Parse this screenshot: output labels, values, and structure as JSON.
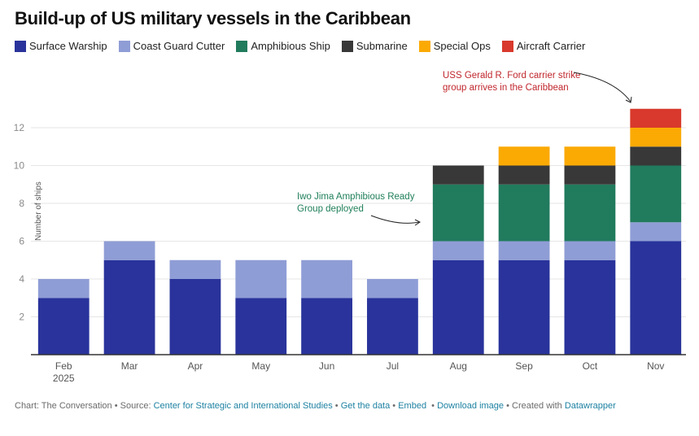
{
  "chart_data": {
    "type": "bar",
    "stacked": true,
    "title": "Build-up of US military vessels in the Caribbean",
    "xlabel": "",
    "ylabel": "Number of ships",
    "ylim": [
      0,
      12
    ],
    "yticks": [
      2,
      4,
      6,
      8,
      10,
      12
    ],
    "grid": true,
    "legend_position": "top-left",
    "categories": [
      "Feb",
      "Mar",
      "Apr",
      "May",
      "Jun",
      "Jul",
      "Aug",
      "Sep",
      "Oct",
      "Nov"
    ],
    "category_sublabels": [
      "2025",
      "",
      "",
      "",
      "",
      "",
      "",
      "",
      "",
      ""
    ],
    "series": [
      {
        "name": "Surface Warship",
        "color": "#29339b",
        "values": [
          3,
          5,
          4,
          3,
          3,
          3,
          5,
          5,
          5,
          6
        ]
      },
      {
        "name": "Coast Guard Cutter",
        "color": "#8f9dd6",
        "values": [
          1,
          1,
          1,
          2,
          2,
          1,
          1,
          1,
          1,
          1
        ]
      },
      {
        "name": "Amphibious Ship",
        "color": "#217b5d",
        "values": [
          0,
          0,
          0,
          0,
          0,
          0,
          3,
          3,
          3,
          3
        ]
      },
      {
        "name": "Submarine",
        "color": "#383838",
        "values": [
          0,
          0,
          0,
          0,
          0,
          0,
          1,
          1,
          1,
          1
        ]
      },
      {
        "name": "Special Ops",
        "color": "#fbaa04",
        "values": [
          0,
          0,
          0,
          0,
          0,
          0,
          0,
          1,
          1,
          1
        ]
      },
      {
        "name": "Aircraft Carrier",
        "color": "#d8392c",
        "values": [
          0,
          0,
          0,
          0,
          0,
          0,
          0,
          0,
          0,
          1
        ]
      }
    ],
    "annotations": [
      {
        "lines": [
          "Iwo Jima Amphibious Ready",
          "Group deployed"
        ],
        "color": "#1f7f5a",
        "target_category": "Aug"
      },
      {
        "lines": [
          "USS Gerald R. Ford carrier strike",
          "group arrives in the Caribbean"
        ],
        "color": "#c0272d",
        "target_category": "Nov"
      }
    ]
  },
  "footer": {
    "chart_credit": "Chart: The Conversation",
    "sep": " • ",
    "source_label": "Source: ",
    "source_link": "Center for Strategic and International Studies",
    "get_data": "Get the data",
    "embed": "Embed",
    "download": "Download image",
    "created_with": "Created with ",
    "datawrapper": "Datawrapper"
  }
}
